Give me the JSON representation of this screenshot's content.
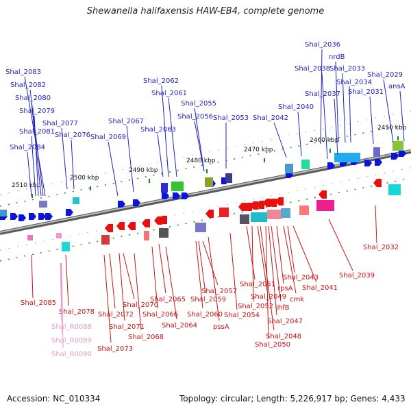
{
  "title": "Shewanella halifaxensis HAW-EB4, complete genome",
  "footer": {
    "accession": "Accession: NC_010334",
    "topology": "Topology: circular; Length: 5,226,917 bp; Genes: 4,433"
  },
  "ticks": [
    "2450 kbp",
    "2460 kbp",
    "2470 kbp",
    "2480 kbp",
    "2490 kbp",
    "2500 kbp",
    "2510 kbp"
  ],
  "forward_labels": [
    "Shal_2036",
    "nrdB",
    "Shal_2038",
    "Shal_2033",
    "Shal_2034",
    "Shal_2029",
    "ansA",
    "Shal_2037",
    "Shal_2031",
    "Shal_2040",
    "Shal_2042",
    "Shal_2053",
    "Shal_2055",
    "Shal_2056",
    "Shal_2062",
    "Shal_2061",
    "Shal_2063",
    "Shal_2067",
    "Shal_2069",
    "Shal_2083",
    "Shal_2082",
    "Shal_2080",
    "Shal_2079",
    "Shal_2077",
    "Shal_2081",
    "Shal_2076",
    "Shal_2084"
  ],
  "reverse_labels": [
    "Shal_2032",
    "Shal_2039",
    "Shal_2041",
    "Shal_2043",
    "rpsA",
    "cmk",
    "Shal_2051",
    "Shal_2049",
    "ihfB",
    "Shal_2052",
    "Shal_2047",
    "Shal_2048",
    "Shal_2050",
    "Shal_2054",
    "pssA",
    "Shal_2057",
    "Shal_2059",
    "Shal_2060",
    "Shal_2065",
    "Shal_2066",
    "Shal_2064",
    "Shal_2070",
    "Shal_2072",
    "Shal_2071",
    "Shal_2068",
    "Shal_2073",
    "Shal_2078",
    "Shal_2085"
  ],
  "rna_labels": [
    "Shal_R0088",
    "Shal_R0089",
    "Shal_R0090"
  ],
  "colors": {
    "forward_label": "#1f1fc4",
    "reverse_label": "#cc1111",
    "rna_label": "#e79bcb",
    "forward_gene": "#0a14e0",
    "reverse_gene": "#e80f0f",
    "backbone": "#8a8a8a"
  }
}
